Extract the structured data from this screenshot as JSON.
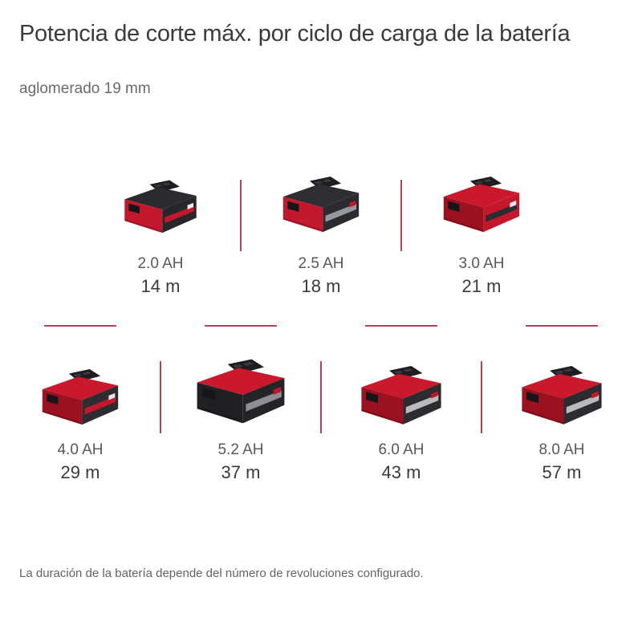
{
  "header": {
    "title": "Potencia de corte máx. por ciclo de carga de la batería",
    "subtitle": "aglomerado 19 mm"
  },
  "footnote": "La duración de la batería depende del número de revoluciones configurado.",
  "brand": {
    "red": "#c3182c",
    "separator_red": "#aa2037",
    "text_dark": "#3b3b3d",
    "text_gray": "#58585a"
  },
  "items": [
    {
      "capacity": "2.0 AH",
      "runtime": "14 m",
      "icon": "battery-icon",
      "colors": {
        "lid": "#2a2a2f",
        "front": "#c3182c",
        "side": "#26262b",
        "stripe": "#c3182c",
        "chip": "#e9e9ee"
      }
    },
    {
      "capacity": "2.5 AH",
      "runtime": "18 m",
      "icon": "battery-icon",
      "colors": {
        "lid": "#2e2e33",
        "front": "#c3182c",
        "side": "#2a2a2f",
        "stripe": "#97979d",
        "chip": "#c3182c"
      }
    },
    {
      "capacity": "3.0 AH",
      "runtime": "21 m",
      "icon": "battery-icon",
      "colors": {
        "lid": "#c9192b",
        "front": "#9b1120",
        "side": "#c3182c",
        "stripe": "#2b2b30",
        "chip": "#e9e9ee"
      }
    },
    {
      "capacity": "4.0 AH",
      "runtime": "29 m",
      "icon": "battery-icon",
      "colors": {
        "lid": "#c9192b",
        "front": "#9b1120",
        "side": "#2c2c31",
        "stripe": "#c3182c",
        "chip": "#e9e9ee"
      }
    },
    {
      "capacity": "5.2 AH",
      "runtime": "37 m",
      "icon": "battery-icon",
      "colors": {
        "lid": "#c9192b",
        "front": "#1f1f24",
        "side": "#232328",
        "stripe": "#8d8d93",
        "chip": "#c3182c"
      }
    },
    {
      "capacity": "6.0 AH",
      "runtime": "43 m",
      "icon": "battery-icon",
      "colors": {
        "lid": "#c9192b",
        "front": "#9b1120",
        "side": "#2b2b30",
        "stripe": "#b9b9bf",
        "chip": "#c3182c"
      }
    },
    {
      "capacity": "8.0 AH",
      "runtime": "57 m",
      "icon": "battery-icon",
      "colors": {
        "lid": "#c9192b",
        "front": "#9b1120",
        "side": "#2b2b30",
        "stripe": "#b9b9bf",
        "chip": "#c3182c"
      }
    }
  ]
}
